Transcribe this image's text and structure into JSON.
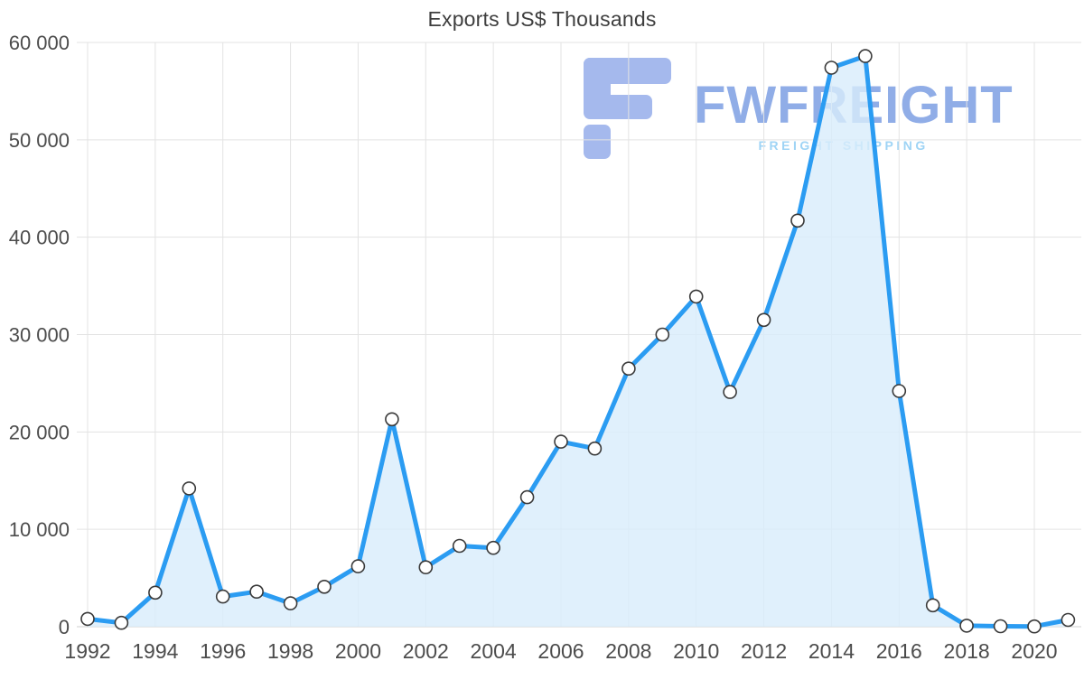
{
  "chart_data": {
    "type": "area",
    "title": "Exports US$ Thousands",
    "series_name": "Exports US$ Thousands",
    "x": [
      1992,
      1993,
      1994,
      1995,
      1996,
      1997,
      1998,
      1999,
      2000,
      2001,
      2002,
      2003,
      2004,
      2005,
      2006,
      2007,
      2008,
      2009,
      2010,
      2011,
      2012,
      2013,
      2014,
      2015,
      2016,
      2017,
      2018,
      2019,
      2020,
      2021
    ],
    "values": [
      800,
      400,
      3500,
      14200,
      3100,
      3600,
      2400,
      4100,
      6200,
      21300,
      6100,
      8300,
      8100,
      13300,
      19000,
      18300,
      26500,
      30000,
      33900,
      24100,
      31500,
      41700,
      57400,
      58600,
      24200,
      2200,
      100,
      50,
      30,
      700
    ],
    "ylim": [
      0,
      60000
    ],
    "ytick_values": [
      0,
      10000,
      20000,
      30000,
      40000,
      50000,
      60000
    ],
    "ytick_labels": [
      "0",
      "10 000",
      "20 000",
      "30 000",
      "40 000",
      "50 000",
      "60 000"
    ],
    "xtick_years": [
      1992,
      1994,
      1996,
      1998,
      2000,
      2002,
      2004,
      2006,
      2008,
      2010,
      2012,
      2014,
      2016,
      2018,
      2020
    ],
    "grid": true,
    "legend": "none",
    "line_color": "#2b9cf2",
    "area_fill": "#d8ecfb",
    "marker_fill": "#ffffff",
    "marker_stroke": "#3a3a3a",
    "grid_color": "#e3e3e3",
    "zero_line_color": "#cfcfcf",
    "axis_label_color": "#4c4c4c",
    "title_color": "#3e3e3e"
  },
  "watermark": {
    "brand": "FWFREIGHT",
    "tagline": "FREIGHT SHIPPING",
    "brand_color": "#7d9fe3",
    "tagline_color": "#8fcdf4",
    "icon_color": "#8aa5e8"
  }
}
